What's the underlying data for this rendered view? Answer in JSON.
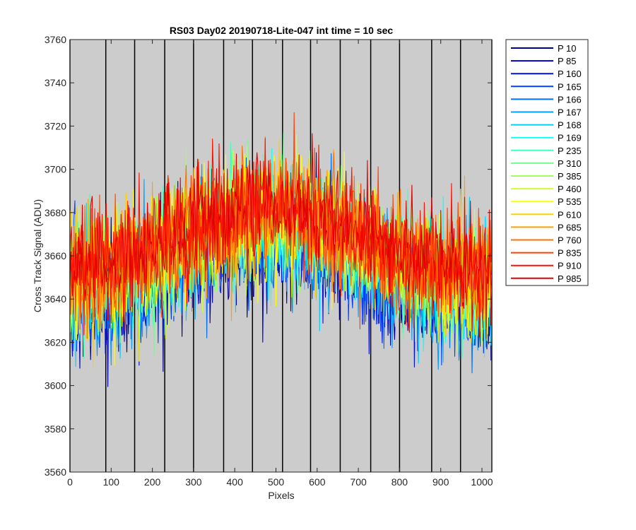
{
  "chart_data": {
    "type": "line",
    "title": "RS03 Day02 20190718-Lite-047 int time = 10 sec",
    "xlabel": "Pixels",
    "ylabel": "Cross Track Signal (ADU)",
    "xlim": [
      0,
      1024
    ],
    "ylim": [
      3560,
      3760
    ],
    "xticks": [
      0,
      100,
      200,
      300,
      400,
      500,
      600,
      700,
      800,
      900,
      1000
    ],
    "yticks": [
      3560,
      3580,
      3600,
      3620,
      3640,
      3660,
      3680,
      3700,
      3720,
      3740,
      3760
    ],
    "grid": false,
    "vertical_lines_at": [
      0,
      87,
      157,
      230,
      300,
      373,
      443,
      516,
      584,
      656,
      730,
      800,
      878,
      948,
      1024
    ],
    "background_color": "#cccccc",
    "legend_position": "outside-right",
    "profile": {
      "x": [
        0,
        100,
        200,
        300,
        400,
        500,
        600,
        700,
        800,
        900,
        1024
      ],
      "mean": [
        3646,
        3650,
        3656,
        3667,
        3674,
        3677,
        3673,
        3664,
        3654,
        3648,
        3646
      ],
      "amplitude": 34,
      "notes": "noisy per-pixel signal around a mean profile; each series spans roughly ±30 ADU"
    },
    "series": [
      {
        "name": "P 10",
        "color": "#00008f"
      },
      {
        "name": "P 85",
        "color": "#0000b8"
      },
      {
        "name": "P 160",
        "color": "#0010e0"
      },
      {
        "name": "P 165",
        "color": "#0040ff"
      },
      {
        "name": "P 166",
        "color": "#0070ff"
      },
      {
        "name": "P 167",
        "color": "#00a0ff"
      },
      {
        "name": "P 168",
        "color": "#00d0ff"
      },
      {
        "name": "P 169",
        "color": "#10ffef"
      },
      {
        "name": "P 235",
        "color": "#40ffbf"
      },
      {
        "name": "P 310",
        "color": "#70ff8f"
      },
      {
        "name": "P 385",
        "color": "#a0ff60"
      },
      {
        "name": "P 460",
        "color": "#cfff30"
      },
      {
        "name": "P 535",
        "color": "#ffff00"
      },
      {
        "name": "P 610",
        "color": "#ffcf00"
      },
      {
        "name": "P 685",
        "color": "#ff9f00"
      },
      {
        "name": "P 760",
        "color": "#ff7000"
      },
      {
        "name": "P 835",
        "color": "#ff4000"
      },
      {
        "name": "P 910",
        "color": "#ff1000"
      },
      {
        "name": "P 985",
        "color": "#df0000"
      }
    ]
  }
}
